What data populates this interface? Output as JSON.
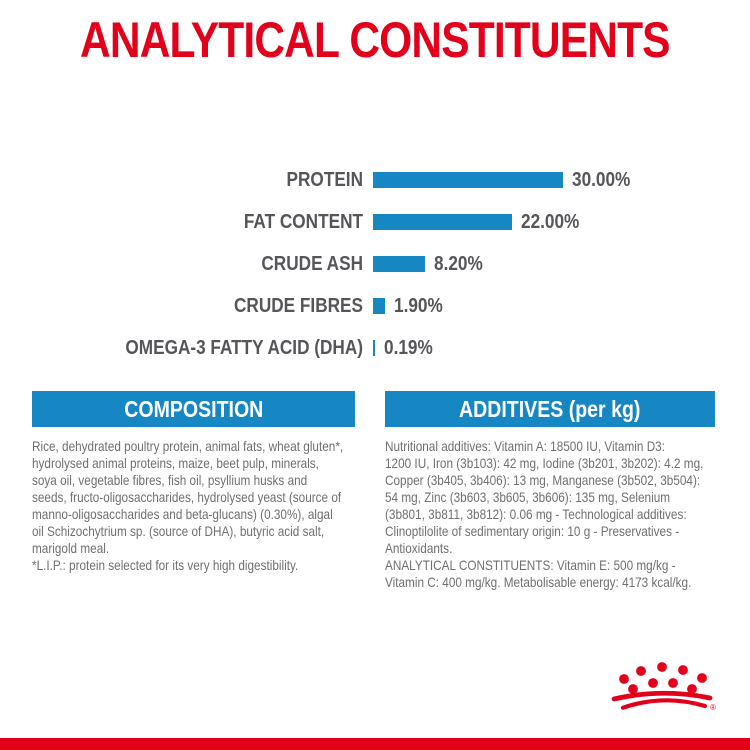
{
  "page": {
    "title": "ANALYTICAL CONSTITUENTS"
  },
  "chart_data": {
    "type": "bar",
    "orientation": "horizontal",
    "categories": [
      "PROTEIN",
      "FAT CONTENT",
      "CRUDE ASH",
      "CRUDE FIBRES",
      "OMEGA-3 FATTY ACID (DHA)"
    ],
    "values": [
      30.0,
      22.0,
      8.2,
      1.9,
      0.19
    ],
    "value_labels": [
      "30.00%",
      "22.00%",
      "8.20%",
      "1.90%",
      "0.19%"
    ],
    "xlim": [
      0,
      30
    ],
    "title": "ANALYTICAL CONSTITUENTS",
    "xlabel": "",
    "ylabel": "",
    "grid": false,
    "legend": false,
    "bar_color": "#1787c4",
    "label_color": "#55565a"
  },
  "sections": {
    "composition": {
      "header": "COMPOSITION",
      "body": "Rice, dehydrated poultry protein, animal fats, wheat gluten*,\nhydrolysed animal proteins, maize, beet pulp, minerals,\nsoya oil, vegetable fibres, fish oil, psyllium husks and\nseeds, fructo-oligosaccharides, hydrolysed yeast (source of\nmanno-oligosaccharides and beta-glucans) (0.30%), algal\noil Schizochytrium sp. (source of DHA), butyric acid salt,\nmarigold meal.\n*L.I.P.: protein selected for its very high digestibility."
    },
    "additives": {
      "header": "ADDITIVES (per kg)",
      "body": "Nutritional additives: Vitamin A: 18500 IU, Vitamin D3:\n1200 IU, Iron (3b103): 42 mg, Iodine (3b201, 3b202): 4.2 mg,\nCopper (3b405, 3b406): 13 mg, Manganese (3b502, 3b504):\n54 mg, Zinc (3b603, 3b605, 3b606): 135 mg, Selenium\n(3b801, 3b811, 3b812): 0.06 mg - Technological additives:\nClinoptilolite of sedimentary origin: 10 g - Preservatives -\nAntioxidants.\nANALYTICAL CONSTITUENTS: Vitamin E: 500 mg/kg -\nVitamin C: 400 mg/kg. Metabolisable energy: 4173 kcal/kg."
    }
  },
  "branding": {
    "logo": "royal-canin-crown",
    "registered_mark": "®"
  },
  "colors": {
    "brand_red": "#e2001a",
    "chart_blue": "#1787c4",
    "header_blue": "#1787c4",
    "label_gray": "#55565a",
    "body_gray": "#6e6f72"
  }
}
